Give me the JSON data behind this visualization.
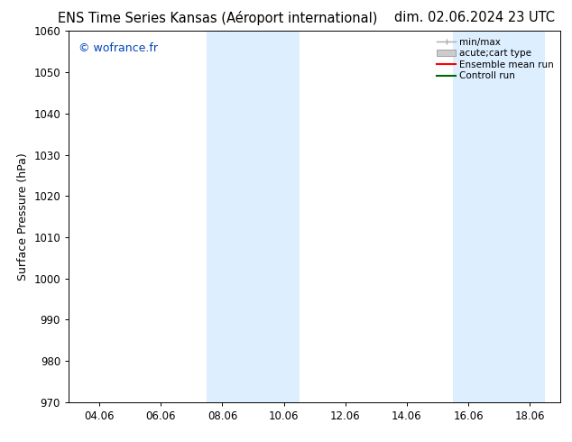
{
  "title_left": "ENS Time Series Kansas (Aéroport international)",
  "title_right": "dim. 02.06.2024 23 UTC",
  "ylabel": "Surface Pressure (hPa)",
  "ylim": [
    970,
    1060
  ],
  "yticks": [
    970,
    980,
    990,
    1000,
    1010,
    1020,
    1030,
    1040,
    1050,
    1060
  ],
  "xtick_labels": [
    "04.06",
    "06.06",
    "08.06",
    "10.06",
    "12.06",
    "14.06",
    "16.06",
    "18.06"
  ],
  "xtick_positions": [
    2,
    4,
    6,
    8,
    10,
    12,
    14,
    16
  ],
  "xlim": [
    1,
    17
  ],
  "shaded_regions": [
    {
      "x_start": 5.5,
      "x_end": 8.5,
      "color": "#ddeeff"
    },
    {
      "x_start": 13.5,
      "x_end": 16.5,
      "color": "#ddeeff"
    }
  ],
  "watermark": "© wofrance.fr",
  "watermark_color": "#0044bb",
  "legend_entries": [
    {
      "label": "min/max",
      "color": "#aaaaaa",
      "type": "errorbar"
    },
    {
      "label": "acute;cart type",
      "color": "#cccccc",
      "type": "bar"
    },
    {
      "label": "Ensemble mean run",
      "color": "#ff0000",
      "type": "line"
    },
    {
      "label": "Controll run",
      "color": "#006600",
      "type": "line"
    }
  ],
  "background_color": "#ffffff",
  "title_fontsize": 10.5,
  "axis_label_fontsize": 9,
  "tick_fontsize": 8.5,
  "watermark_fontsize": 9,
  "legend_fontsize": 7.5
}
